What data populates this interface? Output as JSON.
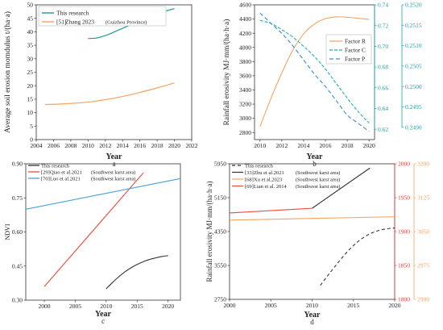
{
  "chart_data": [
    {
      "panel": "a",
      "type": "line",
      "ylabel": "Average soil erosion momdulus t/(ha·a)",
      "xlabel": "Year",
      "xlim": [
        2004,
        2022
      ],
      "ylim": [
        0,
        50
      ],
      "xticks": [
        "2004",
        "2006",
        "2008",
        "2010",
        "2012",
        "2014",
        "2016",
        "2018",
        "2020",
        "2022"
      ],
      "yticks": [
        "0",
        "5",
        "10",
        "15",
        "20",
        "25",
        "30",
        "35",
        "40",
        "45",
        "50"
      ],
      "legend_position": "top-left",
      "series": [
        {
          "name": "This research",
          "color": "#1a9e96",
          "x": [
            2010,
            2011,
            2012,
            2013,
            2014,
            2015,
            2016,
            2017,
            2018,
            2019,
            2020
          ],
          "y": [
            37.5,
            37.7,
            38.6,
            39.9,
            41.3,
            42.7,
            44.1,
            45.4,
            46.6,
            47.7,
            48.6
          ]
        },
        {
          "name": "Zhang 2023",
          "ref": "[51]",
          "note": "(Guizhou Province)",
          "color": "#f4a460",
          "x": [
            2005,
            2006,
            2008,
            2010,
            2012,
            2014,
            2016,
            2018,
            2020
          ],
          "y": [
            13.0,
            13.1,
            13.4,
            13.9,
            14.8,
            16.0,
            17.5,
            19.2,
            21.0
          ]
        }
      ]
    },
    {
      "panel": "b",
      "type": "line",
      "ylabel": "Rainfall erosivity MJ·mm/(ha·h·a)",
      "xlabel": "Year",
      "xlim": [
        2009.5,
        2020.5
      ],
      "ylim_left": [
        2700,
        4600
      ],
      "ylim_right1": [
        0.61,
        0.74
      ],
      "ylim_right2": [
        0.2487,
        0.252
      ],
      "xticks": [
        "2010",
        "2012",
        "2014",
        "2016",
        "2018",
        "2020"
      ],
      "yticks_left": [
        "2800",
        "3000",
        "3200",
        "3400",
        "3600",
        "3800",
        "4000",
        "4200",
        "4400",
        "4600"
      ],
      "yticks_right1": [
        "0.62",
        "0.64",
        "0.66",
        "0.68",
        "0.70",
        "0.72",
        "0.74"
      ],
      "yticks_right2": [
        "0.2490",
        "0.2495",
        "0.2500",
        "0.2505",
        "0.2510",
        "0.2515",
        "0.2520"
      ],
      "legend_position": "right",
      "series": [
        {
          "name": "Factor R",
          "axis": "left",
          "color": "#f4a460",
          "dash": "",
          "x": [
            2010,
            2011,
            2012,
            2013,
            2014,
            2015,
            2016,
            2017,
            2018,
            2019,
            2020
          ],
          "y": [
            2880,
            3280,
            3640,
            3960,
            4190,
            4330,
            4405,
            4430,
            4425,
            4410,
            4395
          ]
        },
        {
          "name": "Factor C",
          "axis": "right1",
          "color": "#20b2aa",
          "dash": "4,2",
          "x": [
            2010,
            2011,
            2012,
            2013,
            2014,
            2015,
            2016,
            2017,
            2018,
            2019,
            2020
          ],
          "y": [
            0.725,
            0.722,
            0.716,
            0.709,
            0.7,
            0.69,
            0.678,
            0.664,
            0.65,
            0.637,
            0.626
          ]
        },
        {
          "name": "Factor P",
          "axis": "right2",
          "color": "#3a8fd6",
          "dash": "5,3",
          "x": [
            2010,
            2011,
            2012,
            2013,
            2014,
            2015,
            2016,
            2017,
            2018,
            2019,
            2020
          ],
          "y": [
            0.2518,
            0.25155,
            0.2513,
            0.251,
            0.25065,
            0.2503,
            0.25,
            0.24965,
            0.2493,
            0.2491,
            0.2489
          ]
        }
      ]
    },
    {
      "panel": "c",
      "type": "line",
      "ylabel": "NDVI",
      "xlabel": "Year",
      "xlim": [
        1997,
        2022
      ],
      "ylim": [
        0.3,
        0.9
      ],
      "xticks": [
        "2000",
        "2005",
        "2010",
        "2015",
        "2020"
      ],
      "yticks": [
        "0.30",
        "0.45",
        "0.60",
        "0.75",
        "0.90"
      ],
      "legend_position": "top-left",
      "series": [
        {
          "name": "This research",
          "color": "#333333",
          "x": [
            2010,
            2011,
            2012,
            2013,
            2014,
            2015,
            2016,
            2017,
            2018,
            2019,
            2020
          ],
          "y": [
            0.35,
            0.377,
            0.402,
            0.424,
            0.442,
            0.457,
            0.469,
            0.479,
            0.486,
            0.492,
            0.496
          ]
        },
        {
          "name": "Qiao et al.2021",
          "ref": "[29]",
          "note": "(Southwest karst area)",
          "color": "#ef4a3a",
          "x": [
            2000,
            2016
          ],
          "y": [
            0.36,
            0.86
          ]
        },
        {
          "name": "Luo et al.2021",
          "ref": "[70]",
          "note": "(Southwest karst area)",
          "color": "#4a9fd8",
          "x": [
            1997,
            2022
          ],
          "y": [
            0.7,
            0.835
          ]
        }
      ]
    },
    {
      "panel": "d",
      "type": "line",
      "ylabel": "Rainfall erosivity MJ·mm/(ha·h·a)",
      "xlabel": "Year",
      "xlim": [
        2000,
        2020
      ],
      "ylim_left": [
        2750,
        5950
      ],
      "ylim_right1": [
        1800,
        2000
      ],
      "ylim_right2": [
        2900,
        3200
      ],
      "xticks": [
        "2000",
        "2005",
        "2010",
        "2015",
        "2020"
      ],
      "yticks_left": [
        "2750",
        "3550",
        "4350",
        "5150",
        "5950"
      ],
      "yticks_right1": [
        "1800",
        "1850",
        "1900",
        "1950",
        "2000"
      ],
      "yticks_right2": [
        "2900",
        "2975",
        "3050",
        "3125",
        "3200"
      ],
      "legend_position": "top-left",
      "series": [
        {
          "name": "This research",
          "axis": "right2",
          "color": "#333333",
          "dash": "4,3",
          "x": [
            2011,
            2012,
            2013,
            2014,
            2015,
            2016,
            2017,
            2018,
            2019,
            2020
          ],
          "y": [
            2931,
            2955,
            2978,
            3000,
            3019,
            3034,
            3045,
            3052,
            3056,
            3058
          ]
        },
        {
          "name": "Zhu et al.2021",
          "ref": "[33]",
          "note": "(Southwest karst area)",
          "axis": "left",
          "color": "#333333",
          "dash": "",
          "x": [
            2010,
            2017
          ],
          "y": [
            4900,
            5850
          ]
        },
        {
          "name": "Xu et al.2023",
          "ref": "[68]",
          "note": "(Southwest karst area)",
          "axis": "left",
          "color": "#f4a460",
          "dash": "",
          "x": [
            2000,
            2020
          ],
          "y": [
            4620,
            4700
          ]
        },
        {
          "name": "Lian et al. 2014",
          "ref": "[69]",
          "note": "(Southwest karst area)",
          "axis": "left",
          "color": "#ef4a3a",
          "dash": "",
          "x": [
            2000,
            2010
          ],
          "y": [
            4790,
            4900
          ]
        }
      ]
    }
  ],
  "panel_letters": {
    "a": "a",
    "b": "b",
    "c": "c",
    "d": "d"
  }
}
